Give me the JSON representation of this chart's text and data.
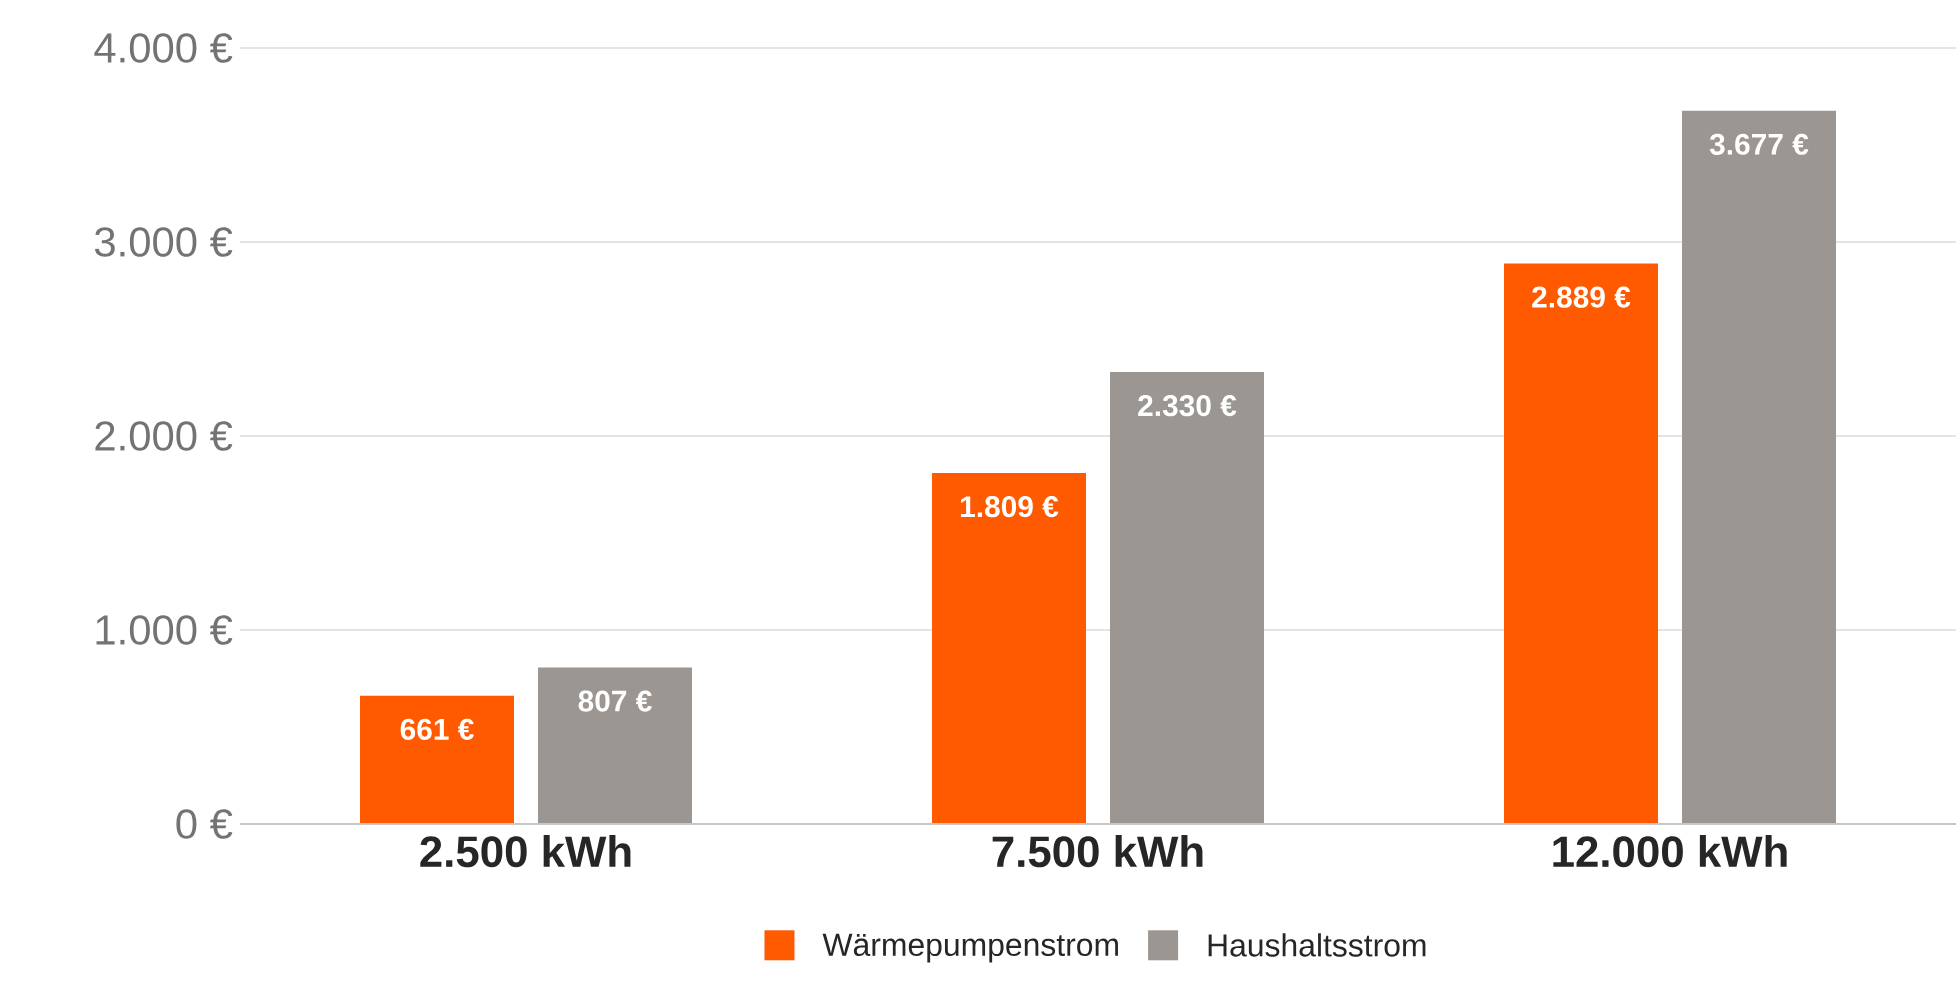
{
  "chart_data": {
    "type": "bar",
    "categories": [
      "2.500 kWh",
      "7.500 kWh",
      "12.000 kWh"
    ],
    "series": [
      {
        "name": "Wärmepumpenstrom",
        "color": "#ff5a00",
        "values": [
          661,
          1809,
          2889
        ],
        "value_labels": [
          "661 €",
          "1.809 €",
          "2.889 €"
        ]
      },
      {
        "name": "Haushaltsstrom",
        "color": "#9b9691",
        "values": [
          807,
          2330,
          3677
        ],
        "value_labels": [
          "807 €",
          "2.330 €",
          "3.677 €"
        ]
      }
    ],
    "ylim": [
      0,
      4000
    ],
    "yticks": [
      {
        "value": 0,
        "label": "0 €"
      },
      {
        "value": 1000,
        "label": "1.000 €"
      },
      {
        "value": 2000,
        "label": "2.000 €"
      },
      {
        "value": 3000,
        "label": "3.000 €"
      },
      {
        "value": 4000,
        "label": "4.000 €"
      }
    ],
    "grid": "y",
    "legend": "bottom"
  }
}
